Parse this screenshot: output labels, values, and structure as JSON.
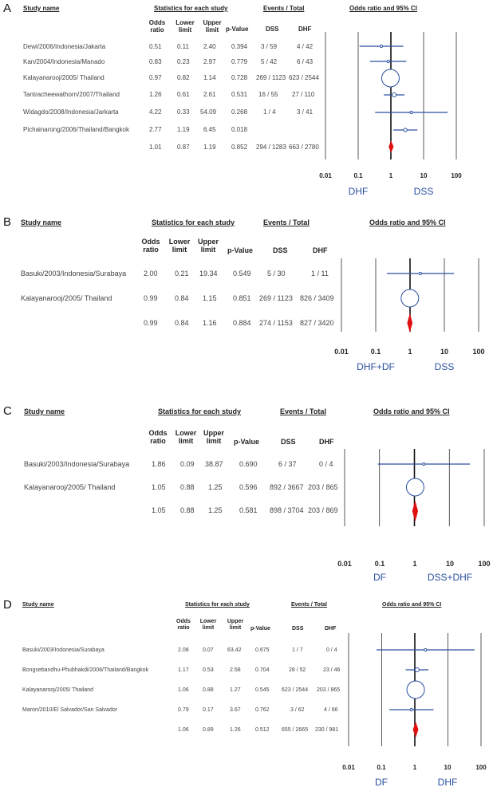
{
  "colors": {
    "ci_line": "#2a4fa0",
    "diamond": "#e01010",
    "axis": "#111111",
    "fav": "#2a4fa0"
  },
  "chart_data": [
    {
      "type": "forest",
      "panel_label": "A",
      "headers": {
        "study_name": "Study name",
        "statistics": "Statistics for each study",
        "events": "Events / Total",
        "plot": "Odds ratio and 95% CI",
        "odds_ratio": "Odds ratio",
        "lower": "Lower limit",
        "upper": "Upper limit",
        "p": "p-Value",
        "group1": "DSS",
        "group2": "DHF"
      },
      "studies": [
        {
          "name": "Dewi/2006/Indonesia/Jakarta",
          "or": "0.51",
          "lower": "0.11",
          "upper": "2.40",
          "p": "0.394",
          "g1": "3 / 59",
          "g2": "4 / 42"
        },
        {
          "name": "Kan/2004/Indonesia/Manado",
          "or": "0.83",
          "lower": "0.23",
          "upper": "2.97",
          "p": "0.779",
          "g1": "5 / 42",
          "g2": "6 / 43"
        },
        {
          "name": "Kalayanarooj/2005/ Thailand",
          "or": "0.97",
          "lower": "0.82",
          "upper": "1.14",
          "p": "0.728",
          "g1": "269 / 1123",
          "g2": "623 / 2544"
        },
        {
          "name": "Tantracheewathorn/2007/Thailand",
          "or": "1.26",
          "lower": "0.61",
          "upper": "2.61",
          "p": "0.531",
          "g1": "16 / 55",
          "g2": "27 / 110"
        },
        {
          "name": "Widagdo/2008/Indonesia/Jarkarta",
          "or": "4.22",
          "lower": "0.33",
          "upper": "54.09",
          "p": "0.268",
          "g1": "1 / 4",
          "g2": "3 / 41"
        },
        {
          "name": "Pichainarong/2006/Thailand/Bangkok",
          "or": "2.77",
          "lower": "1.19",
          "upper": "6.45",
          "p": "0.018",
          "g1": "",
          "g2": ""
        }
      ],
      "pooled": {
        "or": "1.01",
        "lower": "0.87",
        "upper": "1.19",
        "p": "0.852",
        "g1": "294 / 1283",
        "g2": "663 / 2780"
      },
      "ticks": [
        "0.01",
        "0.1",
        "1",
        "10",
        "100"
      ],
      "favours_left": "DHF",
      "favours_right": "DSS",
      "x_scale": "log",
      "xlim": [
        0.01,
        100
      ]
    },
    {
      "type": "forest",
      "panel_label": "B",
      "headers": {
        "study_name": "Study name",
        "statistics": "Statistics for each study",
        "events": "Events / Total",
        "plot": "Odds ratio and 95% CI",
        "odds_ratio": "Odds ratio",
        "lower": "Lower limit",
        "upper": "Upper limit",
        "p": "p-Value",
        "group1": "DSS",
        "group2": "DHF"
      },
      "studies": [
        {
          "name": "Basuki/2003/Indonesia/Surabaya",
          "or": "2.00",
          "lower": "0.21",
          "upper": "19.34",
          "p": "0.549",
          "g1": "5 / 30",
          "g2": "1 / 11"
        },
        {
          "name": "Kalayanarooj/2005/ Thailand",
          "or": "0.99",
          "lower": "0.84",
          "upper": "1.15",
          "p": "0.851",
          "g1": "269 / 1123",
          "g2": "826 / 3409"
        }
      ],
      "pooled": {
        "or": "0.99",
        "lower": "0.84",
        "upper": "1.16",
        "p": "0.884",
        "g1": "274 / 1153",
        "g2": "827 / 3420"
      },
      "ticks": [
        "0.01",
        "0.1",
        "1",
        "10",
        "100"
      ],
      "favours_left": "DHF+DF",
      "favours_right": "DSS",
      "x_scale": "log",
      "xlim": [
        0.01,
        100
      ]
    },
    {
      "type": "forest",
      "panel_label": "C",
      "headers": {
        "study_name": "Study name",
        "statistics": "Statistics for each study",
        "events": "Events / Total",
        "plot": "Odds ratio and 95% CI",
        "odds_ratio": "Odds ratio",
        "lower": "Lower limit",
        "upper": "Upper limit",
        "p": "p-Value",
        "group1": "DSS",
        "group2": "DHF"
      },
      "studies": [
        {
          "name": "Basuki/2003/Indonesia/Surabaya",
          "or": "1.86",
          "lower": "0.09",
          "upper": "38.87",
          "p": "0.690",
          "g1": "6 / 37",
          "g2": "0 / 4"
        },
        {
          "name": "Kalayanarooj/2005/ Thailand",
          "or": "1.05",
          "lower": "0.88",
          "upper": "1.25",
          "p": "0.596",
          "g1": "892 / 3667",
          "g2": "203 / 865"
        }
      ],
      "pooled": {
        "or": "1.05",
        "lower": "0.88",
        "upper": "1.25",
        "p": "0.581",
        "g1": "898 / 3704",
        "g2": "203 / 869"
      },
      "ticks": [
        "0.01",
        "0.1",
        "1",
        "10",
        "100"
      ],
      "favours_left": "DF",
      "favours_right": "DSS+DHF",
      "x_scale": "log",
      "xlim": [
        0.01,
        100
      ]
    },
    {
      "type": "forest",
      "panel_label": "D",
      "headers": {
        "study_name": "Study name",
        "statistics": "Statistics for each study",
        "events": "Events / Total",
        "plot": "Odds ratio and 95% CI",
        "odds_ratio": "Odds ratio",
        "lower": "Lower limit",
        "upper": "Upper limit",
        "p": "p-Value",
        "group1": "DSS",
        "group2": "DHF"
      },
      "studies": [
        {
          "name": "Basuki/2003/Indonesia/Surabaya",
          "or": "2.08",
          "lower": "0.07",
          "upper": "63.42",
          "p": "0.675",
          "g1": "1 / 7",
          "g2": "0 / 4"
        },
        {
          "name": "Bongsebandhu-Phubhakdi/2008/Thailand/Bangkok",
          "or": "1.17",
          "lower": "0.53",
          "upper": "2.58",
          "p": "0.704",
          "g1": "28 / 52",
          "g2": "23 / 46"
        },
        {
          "name": "Kalayanarooj/2005/ Thailand",
          "or": "1.06",
          "lower": "0.88",
          "upper": "1.27",
          "p": "0.545",
          "g1": "623 / 2544",
          "g2": "203 / 865"
        },
        {
          "name": "Maron/2010/El Salvador/San Salvador",
          "or": "0.79",
          "lower": "0.17",
          "upper": "3.67",
          "p": "0.762",
          "g1": "3 / 62",
          "g2": "4 / 66"
        }
      ],
      "pooled": {
        "or": "1.06",
        "lower": "0.89",
        "upper": "1.26",
        "p": "0.512",
        "g1": "655 / 2665",
        "g2": "230 / 981"
      },
      "ticks": [
        "0.01",
        "0.1",
        "1",
        "10",
        "100"
      ],
      "favours_left": "DF",
      "favours_right": "DHF",
      "x_scale": "log",
      "xlim": [
        0.01,
        100
      ]
    }
  ]
}
